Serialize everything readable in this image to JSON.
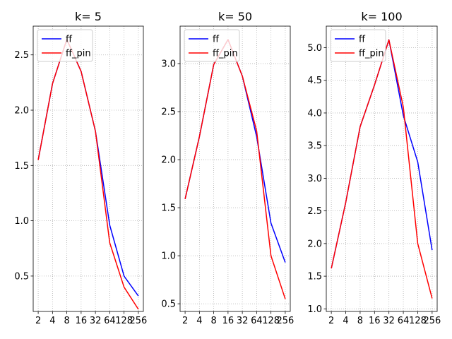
{
  "chart_data": [
    {
      "type": "line",
      "title": "k= 5",
      "x": [
        2,
        4,
        8,
        16,
        32,
        64,
        128,
        256
      ],
      "x_tick_labels": [
        "2",
        "4",
        "8",
        "16",
        "32",
        "64",
        "128",
        "256"
      ],
      "x_scale": "log2",
      "ylim": [
        0.18,
        2.76
      ],
      "yticks": [
        0.5,
        1.0,
        1.5,
        2.0,
        2.5
      ],
      "y_tick_labels": [
        "0.5",
        "1.0",
        "1.5",
        "2.0",
        "2.5"
      ],
      "grid": true,
      "legend_position": "upper left",
      "series": [
        {
          "name": "ff",
          "color": "#0000ff",
          "values": [
            1.55,
            2.24,
            2.64,
            2.35,
            1.81,
            0.96,
            0.5,
            0.32
          ]
        },
        {
          "name": "ff_pin",
          "color": "#ff0000",
          "values": [
            1.55,
            2.24,
            2.64,
            2.35,
            1.81,
            0.8,
            0.4,
            0.2
          ]
        }
      ]
    },
    {
      "type": "line",
      "title": "k= 50",
      "x": [
        2,
        4,
        8,
        16,
        32,
        64,
        128,
        256
      ],
      "x_tick_labels": [
        "2",
        "4",
        "8",
        "16",
        "32",
        "64",
        "128",
        "256"
      ],
      "x_scale": "log2",
      "ylim": [
        0.42,
        3.39
      ],
      "yticks": [
        0.5,
        1.0,
        1.5,
        2.0,
        2.5,
        3.0
      ],
      "y_tick_labels": [
        "0.5",
        "1.0",
        "1.5",
        "2.0",
        "2.5",
        "3.0"
      ],
      "grid": true,
      "legend_position": "upper left",
      "series": [
        {
          "name": "ff",
          "color": "#0000ff",
          "values": [
            1.59,
            2.24,
            2.99,
            3.25,
            2.87,
            2.24,
            1.34,
            0.93
          ]
        },
        {
          "name": "ff_pin",
          "color": "#ff0000",
          "values": [
            1.59,
            2.24,
            2.99,
            3.25,
            2.87,
            2.3,
            1.0,
            0.55
          ]
        }
      ]
    },
    {
      "type": "line",
      "title": "k= 100",
      "x": [
        2,
        4,
        8,
        16,
        32,
        64,
        128,
        256
      ],
      "x_tick_labels": [
        "2",
        "4",
        "8",
        "16",
        "32",
        "64",
        "128",
        "256"
      ],
      "x_scale": "log2",
      "ylim": [
        0.96,
        5.33
      ],
      "yticks": [
        1.0,
        1.5,
        2.0,
        2.5,
        3.0,
        3.5,
        4.0,
        4.5,
        5.0
      ],
      "y_tick_labels": [
        "1.0",
        "1.5",
        "2.0",
        "2.5",
        "3.0",
        "3.5",
        "4.0",
        "4.5",
        "5.0"
      ],
      "grid": true,
      "legend_position": "upper left",
      "series": [
        {
          "name": "ff",
          "color": "#0000ff",
          "values": [
            1.62,
            2.63,
            3.79,
            4.43,
            5.12,
            3.96,
            3.25,
            1.9
          ]
        },
        {
          "name": "ff_pin",
          "color": "#ff0000",
          "values": [
            1.62,
            2.63,
            3.79,
            4.43,
            5.12,
            4.09,
            2.0,
            1.16
          ]
        }
      ]
    }
  ]
}
